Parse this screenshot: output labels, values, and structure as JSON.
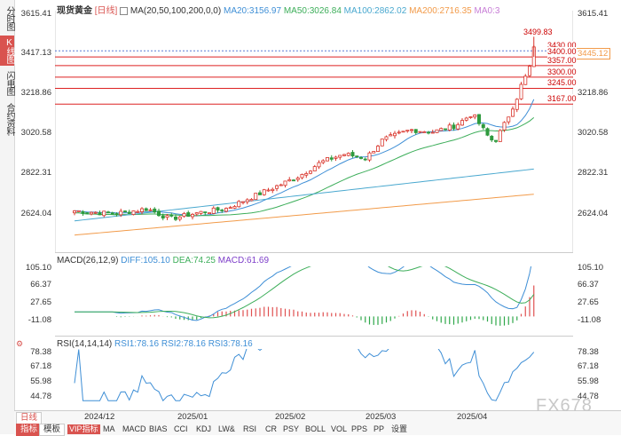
{
  "sidebar": {
    "tabs": [
      {
        "label": "分时图",
        "active": false
      },
      {
        "label": "K线图",
        "active": true
      },
      {
        "label": "闪电图",
        "active": false
      },
      {
        "label": "合约资料",
        "active": false
      }
    ]
  },
  "main_chart": {
    "instrument": "现货黄金",
    "period_tag": "[日线]",
    "ma_param_label": "MA(20,50,100,200,0,0)",
    "ma_legend": [
      {
        "label": "MA20:3156.97",
        "color": "#3f8fd6"
      },
      {
        "label": "MA50:3026.84",
        "color": "#3dae5a"
      },
      {
        "label": "MA100:2862.02",
        "color": "#49a8cf"
      },
      {
        "label": "MA200:2716.35",
        "color": "#f29b4a"
      },
      {
        "label": "MA0:3",
        "color": "#c77dd6"
      }
    ],
    "y_ticks": [
      "3615.41",
      "3417.13",
      "3218.86",
      "3020.58",
      "2822.31",
      "2624.04"
    ],
    "y_tick_values": [
      3615.41,
      3417.13,
      3218.86,
      3020.58,
      2822.31,
      2624.04
    ],
    "right_y_ticks": [
      "3615.41",
      "3218.86",
      "3020.58",
      "2822.31",
      "2624.04"
    ],
    "current_price": "3445.12",
    "high_label": "3499.83",
    "horizontal_levels": [
      "3430.00",
      "3400.00",
      "3357.00",
      "3300.00",
      "3245.00",
      "3167.00"
    ],
    "level_values": [
      3430,
      3400,
      3357,
      3300,
      3245,
      3167
    ]
  },
  "macd_panel": {
    "title": "MACD(26,12,9)",
    "diff": "DIFF:105.10",
    "dea": "DEA:74.25",
    "macd": "MACD:61.69",
    "y_ticks": [
      "105.10",
      "66.37",
      "27.65",
      "-11.08"
    ],
    "colors": {
      "diff": "#3f8fd6",
      "dea": "#3dae5a",
      "macd": "#7d3dc9"
    }
  },
  "rsi_panel": {
    "title": "RSI(14,14,14)",
    "rsi1": "RSI1:78.16",
    "rsi2": "RSI2:78.16",
    "rsi3": "RSI3:78.16",
    "y_ticks": [
      "78.38",
      "67.18",
      "55.98",
      "44.78"
    ]
  },
  "x_axis": {
    "labels": [
      "2024/12",
      "2025/01",
      "2025/02",
      "2025/03",
      "2025/04"
    ]
  },
  "bottom_bar": {
    "tabs": [
      "日线",
      "指标",
      "模板"
    ],
    "indicators": [
      "VIP指标",
      "MA",
      "MACD",
      "BIAS",
      "CCI",
      "KDJ",
      "LW&",
      "RSI",
      "CR",
      "PSY",
      "BOLL",
      "VOL",
      "PPS",
      "PP",
      "设置"
    ],
    "active_indicator": "指标"
  },
  "watermark": "FX678",
  "colors": {
    "up": "#d9342b",
    "down": "#2f9a3e",
    "level": "#d11",
    "accent": "#d9534f"
  }
}
